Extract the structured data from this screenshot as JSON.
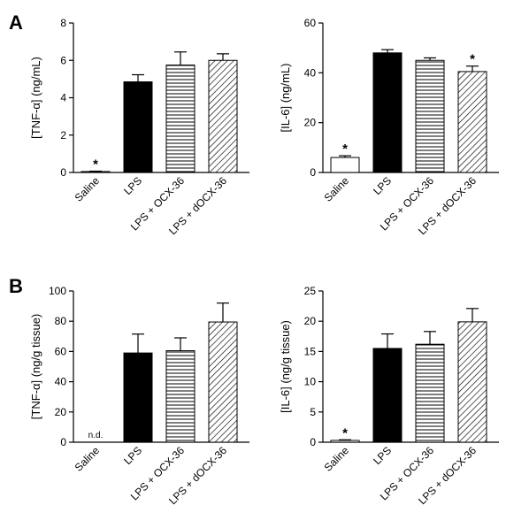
{
  "panels": [
    {
      "letter": "A"
    },
    {
      "letter": "B"
    }
  ],
  "patterns": {
    "solid": "#000000",
    "outline": "#ffffff"
  },
  "chart_data": [
    {
      "id": "chartA1",
      "type": "bar",
      "panel": "A",
      "ylabel": "[TNF-α] (ng/mL)",
      "categories": [
        "Saline",
        "LPS",
        "LPS + OCX-36",
        "LPS + dOCX-36"
      ],
      "values": [
        0.05,
        4.85,
        5.75,
        6.0
      ],
      "errors": [
        0.02,
        0.38,
        0.7,
        0.35
      ],
      "fills": [
        "white",
        "black",
        "hlines",
        "diag"
      ],
      "annotations": [
        "*",
        "",
        "",
        ""
      ],
      "ylim": [
        0,
        8
      ],
      "yticks": [
        0,
        2,
        4,
        6,
        8
      ]
    },
    {
      "id": "chartA2",
      "type": "bar",
      "panel": "A",
      "ylabel": "[IL-6] (ng/mL)",
      "categories": [
        "Saline",
        "LPS",
        "LPS + OCX-36",
        "LPS + dOCX-36"
      ],
      "values": [
        6.0,
        48.0,
        45.0,
        40.5
      ],
      "errors": [
        0.7,
        1.3,
        1.0,
        2.2
      ],
      "fills": [
        "white",
        "black",
        "hlines",
        "diag"
      ],
      "annotations": [
        "*",
        "",
        "",
        "*"
      ],
      "ylim": [
        0,
        60
      ],
      "yticks": [
        0,
        20,
        40,
        60
      ]
    },
    {
      "id": "chartB1",
      "type": "bar",
      "panel": "B",
      "ylabel": "[TNF-α] (ng/g tissue)",
      "categories": [
        "Saline",
        "LPS",
        "LPS + OCX-36",
        "LPS + dOCX-36"
      ],
      "values": [
        0,
        59.0,
        60.5,
        79.5
      ],
      "errors": [
        0,
        12.5,
        8.5,
        12.5
      ],
      "fills": [
        "white",
        "black",
        "hlines",
        "diag"
      ],
      "annotations": [
        "n.d.",
        "",
        "",
        ""
      ],
      "ylim": [
        0,
        100
      ],
      "yticks": [
        0,
        20,
        40,
        60,
        80,
        100
      ]
    },
    {
      "id": "chartB2",
      "type": "bar",
      "panel": "B",
      "ylabel": "[IL-6] (ng/g tissue)",
      "categories": [
        "Saline",
        "LPS",
        "LPS + OCX-36",
        "LPS + dOCX-36"
      ],
      "values": [
        0.3,
        15.5,
        16.2,
        19.9
      ],
      "errors": [
        0.1,
        2.4,
        2.1,
        2.2
      ],
      "fills": [
        "white",
        "black",
        "hlines",
        "diag"
      ],
      "annotations": [
        "*",
        "",
        "",
        ""
      ],
      "ylim": [
        0,
        25
      ],
      "yticks": [
        0,
        5,
        10,
        15,
        20,
        25
      ]
    }
  ]
}
